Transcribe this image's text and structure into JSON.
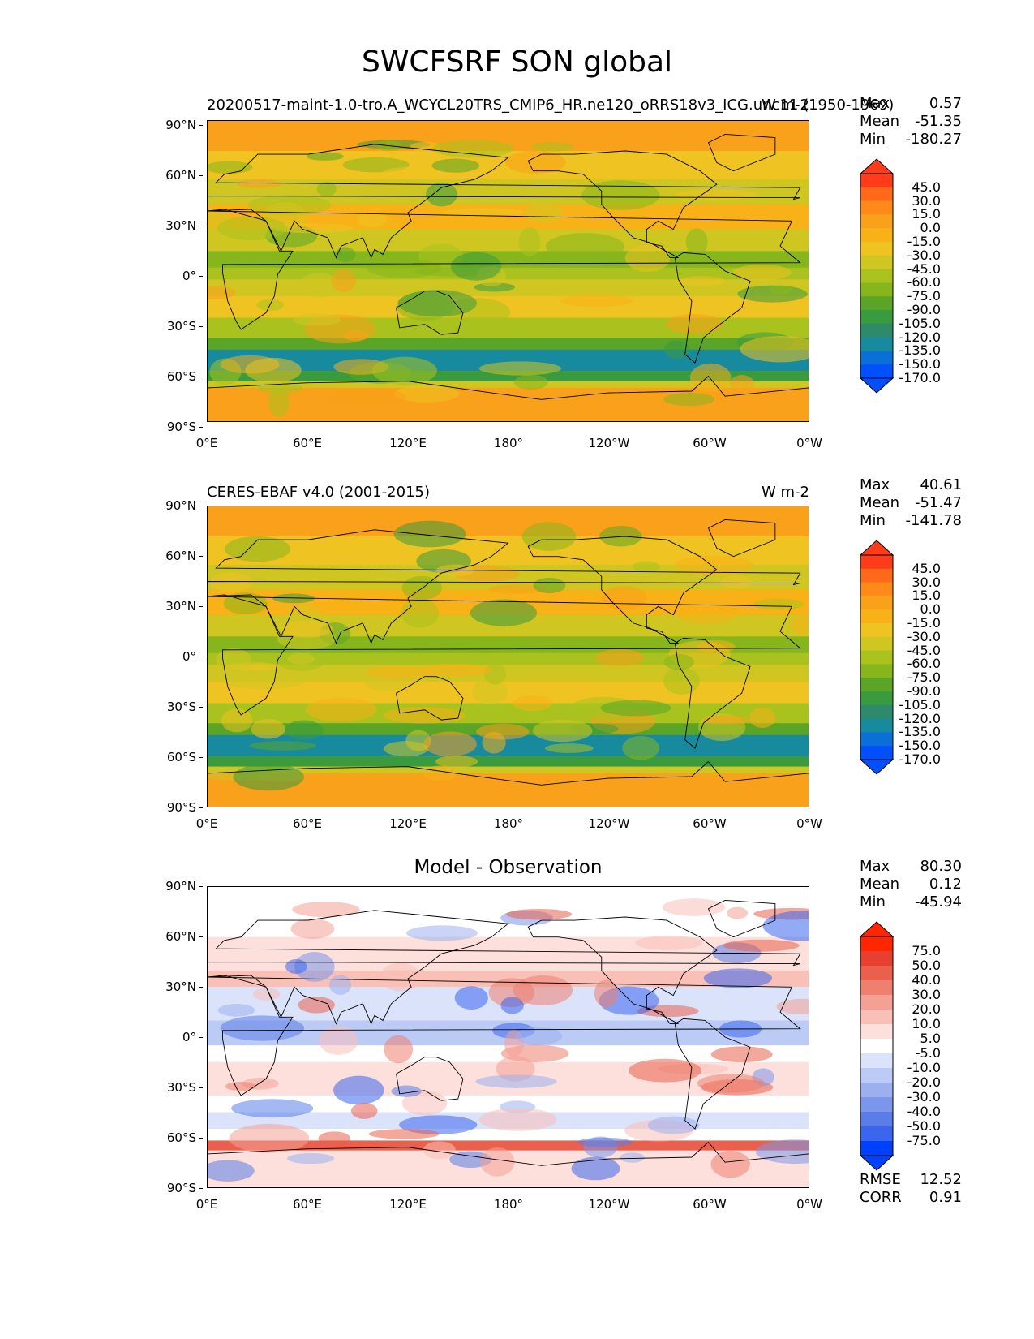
{
  "title": "SWCFSRF SON global",
  "panels": {
    "test": {
      "title_left": "20200517-maint-1.0-tro.A_WCYCL20TRS_CMIP6_HR.ne120_oRRS18v3_ICG.unc11 (1950-1969)",
      "title_right": "W m-2",
      "stats": {
        "max_label": "Max",
        "max": "0.57",
        "mean_label": "Mean",
        "mean": "-51.35",
        "min_label": "Min",
        "min": "-180.27"
      },
      "colorbar": [
        "45.0",
        "30.0",
        "15.0",
        "0.0",
        "-15.0",
        "-30.0",
        "-45.0",
        "-60.0",
        "-75.0",
        "-90.0",
        "-105.0",
        "-120.0",
        "-135.0",
        "-150.0",
        "-170.0"
      ]
    },
    "ref": {
      "title_left": "CERES-EBAF v4.0 (2001-2015)",
      "title_right": "W m-2",
      "stats": {
        "max_label": "Max",
        "max": "40.61",
        "mean_label": "Mean",
        "mean": "-51.47",
        "min_label": "Min",
        "min": "-141.78"
      },
      "colorbar": [
        "45.0",
        "30.0",
        "15.0",
        "0.0",
        "-15.0",
        "-30.0",
        "-45.0",
        "-60.0",
        "-75.0",
        "-90.0",
        "-105.0",
        "-120.0",
        "-135.0",
        "-150.0",
        "-170.0"
      ]
    },
    "diff": {
      "title": "Model - Observation",
      "stats": {
        "max_label": "Max",
        "max": "80.30",
        "mean_label": "Mean",
        "mean": "0.12",
        "min_label": "Min",
        "min": "-45.94"
      },
      "colorbar": [
        "75.0",
        "50.0",
        "40.0",
        "30.0",
        "20.0",
        "10.0",
        "5.0",
        "-5.0",
        "-10.0",
        "-20.0",
        "-30.0",
        "-40.0",
        "-50.0",
        "-75.0"
      ],
      "metrics": {
        "rmse_label": "RMSE",
        "rmse": "12.52",
        "corr_label": "CORR",
        "corr": "0.91"
      }
    }
  },
  "axes": {
    "lat_ticks": [
      "90°N",
      "60°N",
      "30°N",
      "0°",
      "30°S",
      "60°S",
      "90°S"
    ],
    "lon_ticks": [
      "0°E",
      "60°E",
      "120°E",
      "180°",
      "120°W",
      "60°W",
      "0°W"
    ]
  },
  "colors": {
    "main_cmap": [
      "#0050ff",
      "#0a6fd6",
      "#178a9e",
      "#2e8a6a",
      "#3a9a3e",
      "#5aa528",
      "#86b61c",
      "#a9c21e",
      "#d0c622",
      "#efc321",
      "#f8b116",
      "#f9a11a",
      "#ff8a1a",
      "#ff6a18",
      "#ff3c1a"
    ],
    "diff_cmap": [
      "#0040ff",
      "#3a66ee",
      "#5a7de8",
      "#7b96ea",
      "#9cb0f0",
      "#bccaf6",
      "#dbe3fb",
      "#ffffff",
      "#fde0dc",
      "#f9c0b8",
      "#f4a095",
      "#ef8070",
      "#ea604d",
      "#e84030",
      "#ff2600"
    ]
  }
}
